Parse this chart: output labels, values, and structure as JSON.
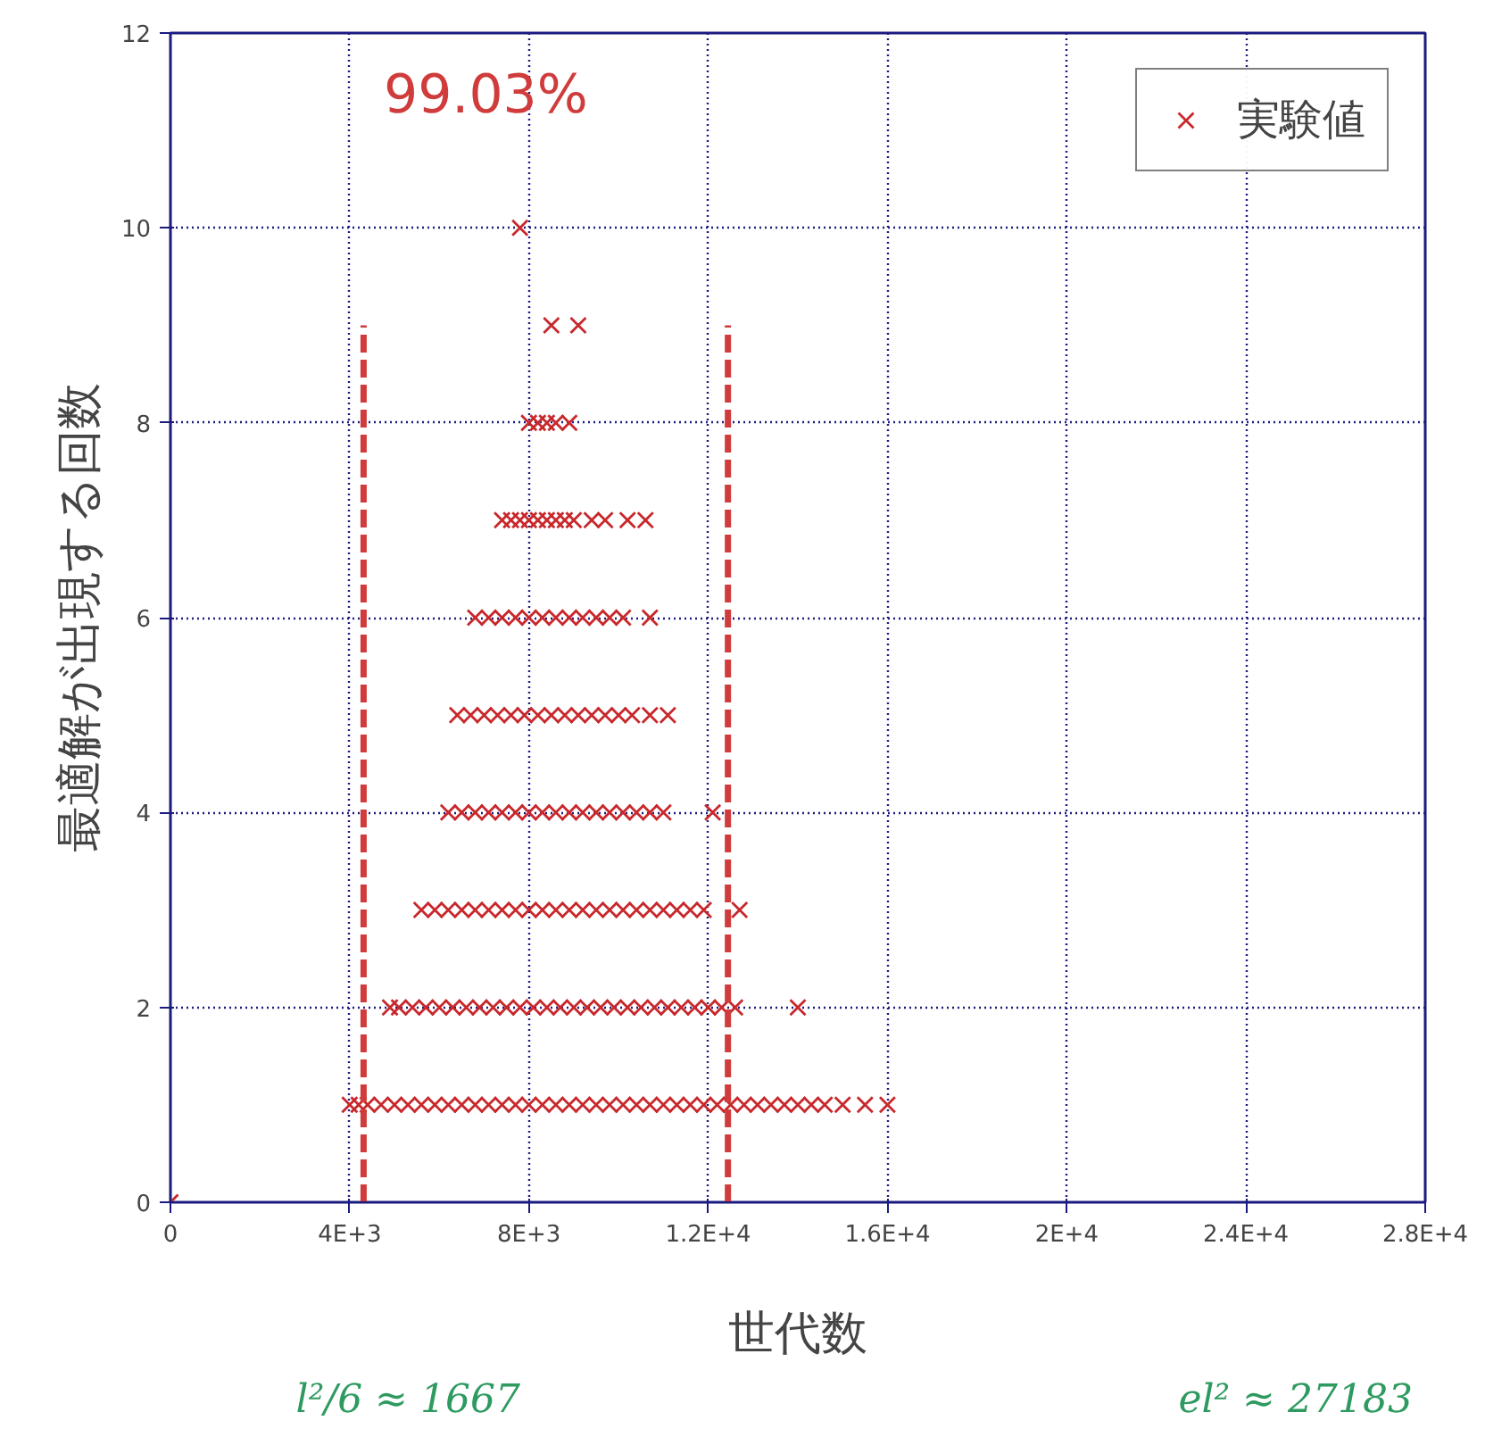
{
  "chart_data": {
    "type": "scatter",
    "xlabel": "世代数",
    "ylabel": "最適解が出現する回数",
    "xlim": [
      0,
      28000
    ],
    "ylim": [
      0,
      12
    ],
    "xticks": [
      0,
      {
        "value": 4000,
        "label": "4E+3"
      },
      {
        "value": 8000,
        "label": "8E+3"
      },
      {
        "value": 12000,
        "label": "1.2E+4"
      },
      {
        "value": 16000,
        "label": "1.6E+4"
      },
      {
        "value": 20000,
        "label": "2E+4"
      },
      {
        "value": 24000,
        "label": "2.4E+4"
      },
      {
        "value": 28000,
        "label": "2.8E+4"
      }
    ],
    "yticks": [
      0,
      2,
      4,
      6,
      8,
      10,
      12
    ],
    "grid": true,
    "legend": "top right",
    "marker": "cross",
    "annotations": [
      "99.03%",
      "l²/6 ≈ 1667",
      "el² ≈ 27183"
    ],
    "series": [
      {
        "type": "scatter",
        "name": "実験値",
        "color": "#c8282c",
        "x": [
          0,
          4000,
          4200,
          4400,
          4700,
          5000,
          5300,
          5600,
          5900,
          6200,
          6500,
          6800,
          7100,
          7400,
          7700,
          8000,
          8300,
          8600,
          8900,
          9200,
          9500,
          9800,
          10100,
          10400,
          10700,
          11000,
          11300,
          11600,
          11900,
          12200,
          12500,
          12800,
          13100,
          13400,
          13700,
          14000,
          14300,
          14600,
          15000,
          15500,
          16000,
          4900,
          5100,
          5400,
          5700,
          6000,
          6300,
          6600,
          6900,
          7200,
          7500,
          7800,
          8100,
          8400,
          8700,
          9000,
          9300,
          9600,
          9900,
          10200,
          10500,
          10800,
          11100,
          11400,
          11700,
          12000,
          12300,
          12600,
          14000,
          5600,
          5900,
          6200,
          6500,
          6800,
          7100,
          7400,
          7700,
          8000,
          8300,
          8600,
          8900,
          9200,
          9500,
          9800,
          10100,
          10400,
          10700,
          11000,
          11300,
          11600,
          11900,
          12700,
          6200,
          6500,
          6800,
          7100,
          7400,
          7700,
          8000,
          8300,
          8600,
          8900,
          9200,
          9500,
          9800,
          10100,
          10400,
          10700,
          11000,
          12100,
          6400,
          6700,
          7000,
          7300,
          7600,
          7900,
          8200,
          8500,
          8800,
          9100,
          9400,
          9700,
          10000,
          10300,
          10700,
          11100,
          6800,
          7100,
          7400,
          7700,
          8000,
          8300,
          8600,
          8900,
          9200,
          9500,
          9800,
          10100,
          10700,
          7400,
          7600,
          7800,
          8000,
          8200,
          8400,
          8600,
          8800,
          9000,
          9400,
          9700,
          10200,
          10600,
          8000,
          8200,
          8400,
          8600,
          8900,
          8500,
          9100,
          7800
        ],
        "values": [
          0,
          1,
          1,
          1,
          1,
          1,
          1,
          1,
          1,
          1,
          1,
          1,
          1,
          1,
          1,
          1,
          1,
          1,
          1,
          1,
          1,
          1,
          1,
          1,
          1,
          1,
          1,
          1,
          1,
          1,
          1,
          1,
          1,
          1,
          1,
          1,
          1,
          1,
          1,
          1,
          1,
          2,
          2,
          2,
          2,
          2,
          2,
          2,
          2,
          2,
          2,
          2,
          2,
          2,
          2,
          2,
          2,
          2,
          2,
          2,
          2,
          2,
          2,
          2,
          2,
          2,
          2,
          2,
          2,
          3,
          3,
          3,
          3,
          3,
          3,
          3,
          3,
          3,
          3,
          3,
          3,
          3,
          3,
          3,
          3,
          3,
          3,
          3,
          3,
          3,
          3,
          3,
          4,
          4,
          4,
          4,
          4,
          4,
          4,
          4,
          4,
          4,
          4,
          4,
          4,
          4,
          4,
          4,
          4,
          4,
          5,
          5,
          5,
          5,
          5,
          5,
          5,
          5,
          5,
          5,
          5,
          5,
          5,
          5,
          5,
          5,
          6,
          6,
          6,
          6,
          6,
          6,
          6,
          6,
          6,
          6,
          6,
          6,
          6,
          7,
          7,
          7,
          7,
          7,
          7,
          7,
          7,
          7,
          7,
          7,
          7,
          7,
          8,
          8,
          8,
          8,
          8,
          9,
          9,
          10
        ]
      },
      {
        "type": "line",
        "color": "#d03c3c",
        "line_style": "dashed",
        "marker": "none",
        "x": [
          4310,
          4310
        ],
        "values": [
          0,
          9
        ]
      },
      {
        "type": "line",
        "color": "#d03c3c",
        "line_style": "dashed",
        "marker": "none",
        "x": [
          12440,
          12440
        ],
        "values": [
          0,
          9
        ]
      }
    ]
  }
}
